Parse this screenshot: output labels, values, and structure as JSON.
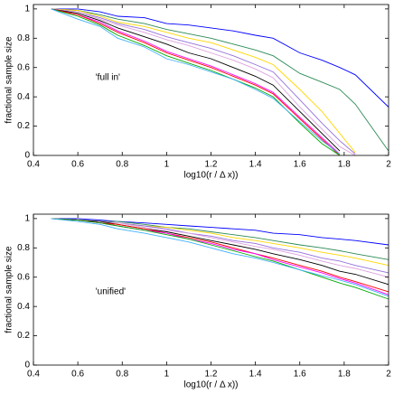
{
  "chart_data": [
    {
      "type": "line",
      "annotation": "'full in'",
      "annotation_x": 0.68,
      "annotation_y": 0.53,
      "xlabel": "log10(r / Δ x))",
      "ylabel": "fractional sample size",
      "xlim": [
        0.4,
        2
      ],
      "ylim": [
        0,
        1.03
      ],
      "xticks": [
        0.4,
        0.6,
        0.8,
        1,
        1.2,
        1.4,
        1.6,
        1.8,
        2
      ],
      "yticks": [
        0,
        0.2,
        0.4,
        0.6,
        0.8,
        1
      ],
      "x": [
        0.48,
        0.6,
        0.7,
        0.78,
        0.9,
        1,
        1.1,
        1.2,
        1.3,
        1.4,
        1.48,
        1.6,
        1.7,
        1.78,
        1.85,
        2
      ],
      "series": [
        {
          "color": "#0000ff",
          "values": [
            1,
            1,
            0.98,
            0.95,
            0.94,
            0.9,
            0.89,
            0.87,
            0.85,
            0.82,
            0.8,
            0.7,
            0.65,
            0.6,
            0.55,
            0.33
          ]
        },
        {
          "color": "#2e8b57",
          "values": [
            1,
            0.99,
            0.96,
            0.93,
            0.9,
            0.86,
            0.83,
            0.8,
            0.76,
            0.72,
            0.68,
            0.56,
            0.5,
            0.45,
            0.35,
            0.03
          ]
        },
        {
          "color": "#ffd700",
          "values": [
            1,
            0.99,
            0.95,
            0.91,
            0.88,
            0.84,
            0.8,
            0.77,
            0.72,
            0.67,
            0.62,
            0.45,
            0.3,
            0.15,
            0.02,
            null
          ]
        },
        {
          "color": "#9370db",
          "values": [
            1,
            0.98,
            0.94,
            0.9,
            0.86,
            0.81,
            0.77,
            0.73,
            0.68,
            0.62,
            0.57,
            0.38,
            0.22,
            0.1,
            0.01,
            null
          ]
        },
        {
          "color": "#dda0dd",
          "values": [
            1,
            0.98,
            0.93,
            0.89,
            0.84,
            0.79,
            0.75,
            0.7,
            0.65,
            0.59,
            0.53,
            0.33,
            0.18,
            0.06,
            0,
            null
          ]
        },
        {
          "color": "#000000",
          "values": [
            1,
            0.97,
            0.92,
            0.87,
            0.81,
            0.76,
            0.7,
            0.66,
            0.6,
            0.54,
            0.48,
            0.3,
            0.15,
            0.03,
            null,
            null
          ]
        },
        {
          "color": "#ff00ff",
          "values": [
            1,
            0.96,
            0.91,
            0.85,
            0.78,
            0.71,
            0.66,
            0.61,
            0.55,
            0.49,
            0.43,
            0.26,
            0.12,
            0.01,
            null,
            null
          ]
        },
        {
          "color": "#ff0000",
          "values": [
            1,
            0.96,
            0.9,
            0.84,
            0.77,
            0.7,
            0.65,
            0.6,
            0.54,
            0.48,
            0.42,
            0.25,
            0.11,
            0,
            null,
            null
          ]
        },
        {
          "color": "#00aa00",
          "values": [
            1,
            0.95,
            0.89,
            0.82,
            0.75,
            0.68,
            0.63,
            0.58,
            0.52,
            0.46,
            0.4,
            0.22,
            0.08,
            0,
            null,
            null
          ]
        },
        {
          "color": "#40b0ff",
          "values": [
            1,
            0.93,
            0.88,
            0.8,
            0.74,
            0.66,
            0.62,
            0.57,
            0.52,
            0.45,
            0.39,
            0.23,
            0.1,
            0.01,
            null,
            null
          ]
        }
      ]
    },
    {
      "type": "line",
      "annotation": "'unified'",
      "annotation_x": 0.68,
      "annotation_y": 0.5,
      "xlabel": "log10(r / Δ x))",
      "ylabel": "fractional sample size",
      "xlim": [
        0.4,
        2
      ],
      "ylim": [
        0,
        1.03
      ],
      "xticks": [
        0.4,
        0.6,
        0.8,
        1,
        1.2,
        1.4,
        1.6,
        1.8,
        2
      ],
      "yticks": [
        0,
        0.2,
        0.4,
        0.6,
        0.8,
        1
      ],
      "x": [
        0.48,
        0.6,
        0.7,
        0.78,
        0.9,
        1,
        1.1,
        1.2,
        1.3,
        1.4,
        1.48,
        1.6,
        1.7,
        1.78,
        1.85,
        2
      ],
      "series": [
        {
          "color": "#0000ff",
          "values": [
            1,
            1,
            0.99,
            0.98,
            0.97,
            0.96,
            0.95,
            0.94,
            0.93,
            0.92,
            0.9,
            0.89,
            0.87,
            0.86,
            0.85,
            0.82
          ]
        },
        {
          "color": "#2e8b57",
          "values": [
            1,
            0.99,
            0.98,
            0.98,
            0.96,
            0.94,
            0.93,
            0.91,
            0.89,
            0.87,
            0.85,
            0.82,
            0.8,
            0.78,
            0.76,
            0.72
          ]
        },
        {
          "color": "#ffd700",
          "values": [
            1,
            0.99,
            0.98,
            0.97,
            0.95,
            0.94,
            0.92,
            0.9,
            0.87,
            0.85,
            0.83,
            0.8,
            0.77,
            0.75,
            0.73,
            0.68
          ]
        },
        {
          "color": "#9370db",
          "values": [
            1,
            0.99,
            0.98,
            0.97,
            0.95,
            0.93,
            0.9,
            0.88,
            0.85,
            0.83,
            0.8,
            0.77,
            0.73,
            0.71,
            0.68,
            0.63
          ]
        },
        {
          "color": "#dda0dd",
          "values": [
            1,
            0.99,
            0.98,
            0.97,
            0.94,
            0.92,
            0.9,
            0.87,
            0.84,
            0.81,
            0.79,
            0.75,
            0.71,
            0.68,
            0.66,
            0.6
          ]
        },
        {
          "color": "#000000",
          "values": [
            1,
            0.99,
            0.98,
            0.96,
            0.93,
            0.91,
            0.88,
            0.85,
            0.82,
            0.79,
            0.76,
            0.72,
            0.68,
            0.64,
            0.62,
            0.55
          ]
        },
        {
          "color": "#ff0000",
          "values": [
            1,
            0.99,
            0.97,
            0.96,
            0.93,
            0.9,
            0.87,
            0.84,
            0.8,
            0.76,
            0.73,
            0.68,
            0.64,
            0.6,
            0.57,
            0.5
          ]
        },
        {
          "color": "#ff00ff",
          "values": [
            1,
            0.99,
            0.97,
            0.95,
            0.92,
            0.9,
            0.86,
            0.83,
            0.79,
            0.76,
            0.72,
            0.67,
            0.63,
            0.59,
            0.56,
            0.48
          ]
        },
        {
          "color": "#00aa00",
          "values": [
            1,
            0.99,
            0.97,
            0.95,
            0.92,
            0.89,
            0.86,
            0.82,
            0.78,
            0.74,
            0.71,
            0.65,
            0.6,
            0.56,
            0.53,
            0.45
          ]
        },
        {
          "color": "#40b0ff",
          "values": [
            1,
            0.98,
            0.96,
            0.93,
            0.9,
            0.87,
            0.84,
            0.8,
            0.76,
            0.73,
            0.7,
            0.65,
            0.61,
            0.58,
            0.55,
            0.47
          ]
        }
      ]
    }
  ]
}
